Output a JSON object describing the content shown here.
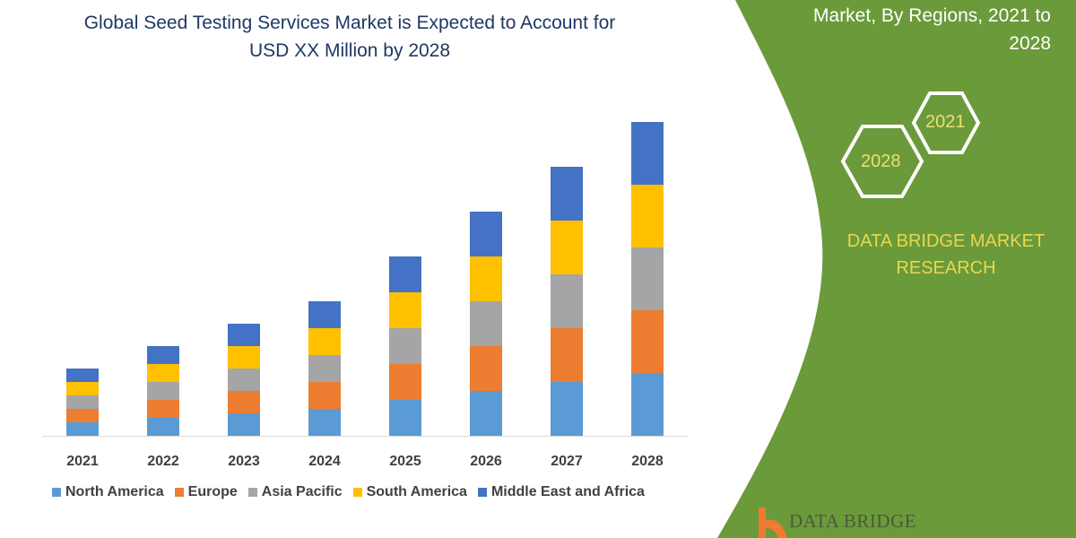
{
  "header": {
    "title_line1": "Global Seed Testing Services Market is Expected to Account for",
    "title_line2": "USD XX Million by 2028"
  },
  "panel": {
    "title_line1": "Market, By Regions, 2021 to",
    "title_line2": "2028",
    "hex_back": "2021",
    "hex_front": "2028",
    "brand_line1": "DATA BRIDGE MARKET",
    "brand_line2": "RESEARCH",
    "logo_text": "DATA BRIDGE",
    "color": "#6b9a3a"
  },
  "chart_data": {
    "type": "bar",
    "stacked": true,
    "title": "Global Seed Testing Services Market is Expected to Account for USD XX Million by 2028",
    "categories": [
      "2021",
      "2022",
      "2023",
      "2024",
      "2025",
      "2026",
      "2027",
      "2028"
    ],
    "series": [
      {
        "name": "North America",
        "color": "#5b9bd5",
        "values": [
          15,
          20,
          25,
          30,
          40,
          50,
          60,
          70
        ]
      },
      {
        "name": "Europe",
        "color": "#ed7d31",
        "values": [
          15,
          20,
          25,
          30,
          40,
          50,
          60,
          70
        ]
      },
      {
        "name": "Asia Pacific",
        "color": "#a5a5a5",
        "values": [
          15,
          20,
          25,
          30,
          40,
          50,
          60,
          70
        ]
      },
      {
        "name": "South America",
        "color": "#ffc000",
        "values": [
          15,
          20,
          25,
          30,
          40,
          50,
          60,
          70
        ]
      },
      {
        "name": "Middle East and Africa",
        "color": "#4472c4",
        "values": [
          15,
          20,
          25,
          30,
          40,
          50,
          60,
          70
        ]
      }
    ],
    "ylim": [
      0,
      350
    ],
    "grid": false,
    "y_axis_shown": false,
    "legend_placement": "bottom"
  }
}
